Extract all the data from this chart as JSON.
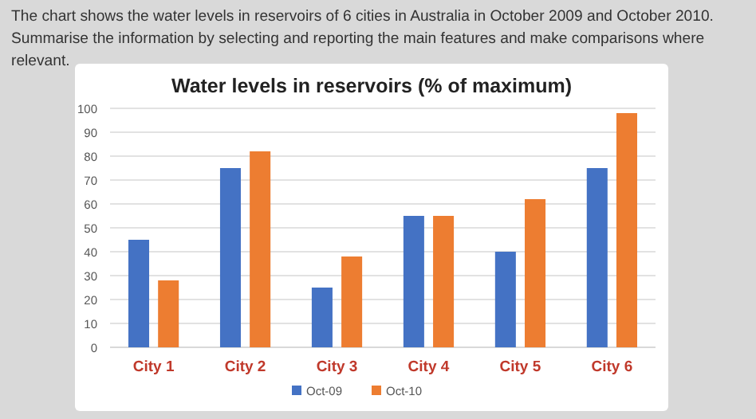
{
  "chart_data": {
    "type": "bar",
    "title": "Water levels in reservoirs (% of maximum)",
    "annotations": [
      "The chart shows the water levels in reservoirs of 6 cities in Australia in October 2009 and October 2010. Summarise the information by selecting and reporting the main features and make comparisons where relevant."
    ],
    "categories": [
      "City 1",
      "City 2",
      "City 3",
      "City 4",
      "City 5",
      "City 6"
    ],
    "series": [
      {
        "name": "Oct-09",
        "color": "#4472c4",
        "values": [
          45,
          75,
          25,
          55,
          40,
          75
        ]
      },
      {
        "name": "Oct-10",
        "color": "#ed7d31",
        "values": [
          28,
          82,
          38,
          55,
          62,
          98
        ]
      }
    ],
    "ylim": [
      0,
      100
    ],
    "yticks": [
      0,
      10,
      20,
      30,
      40,
      50,
      60,
      70,
      80,
      90,
      100
    ],
    "grid": "y",
    "legend": "bottom"
  }
}
